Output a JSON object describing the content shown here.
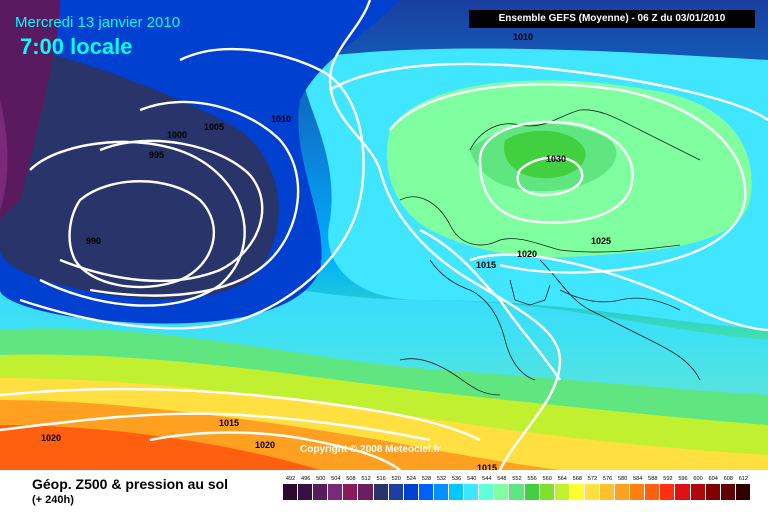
{
  "header": {
    "date": "Mercredi 13 janvier 2010",
    "time": "7:00 locale",
    "run": "Ensemble GEFS (Moyenne)  - 06 Z du 03/01/2010"
  },
  "map": {
    "isobar_labels": [
      "1010",
      "1000",
      "1005",
      "1010",
      "995",
      "990",
      "1030",
      "1025",
      "1015",
      "1020",
      "1015",
      "1020",
      "1020",
      "1015"
    ],
    "copyright": "Copyright © 2008 Meteociel.fr"
  },
  "footer": {
    "title": "Géop. Z500 & pression au sol",
    "subtitle": "(+ 240h)"
  },
  "legend": {
    "values": [
      "492",
      "496",
      "500",
      "504",
      "508",
      "512",
      "516",
      "520",
      "524",
      "528",
      "532",
      "536",
      "540",
      "544",
      "548",
      "552",
      "556",
      "560",
      "564",
      "568",
      "572",
      "576",
      "580",
      "584",
      "588",
      "592",
      "596",
      "600",
      "604",
      "608",
      "612"
    ],
    "colors": [
      "#2a0a2e",
      "#3a0f45",
      "#5a1a60",
      "#7a2a7a",
      "#8a1a5a",
      "#6a2060",
      "#28346a",
      "#1a3fa0",
      "#0040d0",
      "#0060ff",
      "#0090ff",
      "#00c8ff",
      "#40e6ff",
      "#60ffd8",
      "#80ffa0",
      "#60e680",
      "#40d040",
      "#80e030",
      "#c0f030",
      "#ffff30",
      "#ffe040",
      "#ffc030",
      "#ffa020",
      "#ff8010",
      "#ff6010",
      "#ff3010",
      "#e01010",
      "#b00808",
      "#800000",
      "#600000",
      "#300000"
    ]
  },
  "colors": {
    "heading": "#00ffff",
    "run_box_bg": "#000000",
    "isobar": "#ffffff"
  }
}
